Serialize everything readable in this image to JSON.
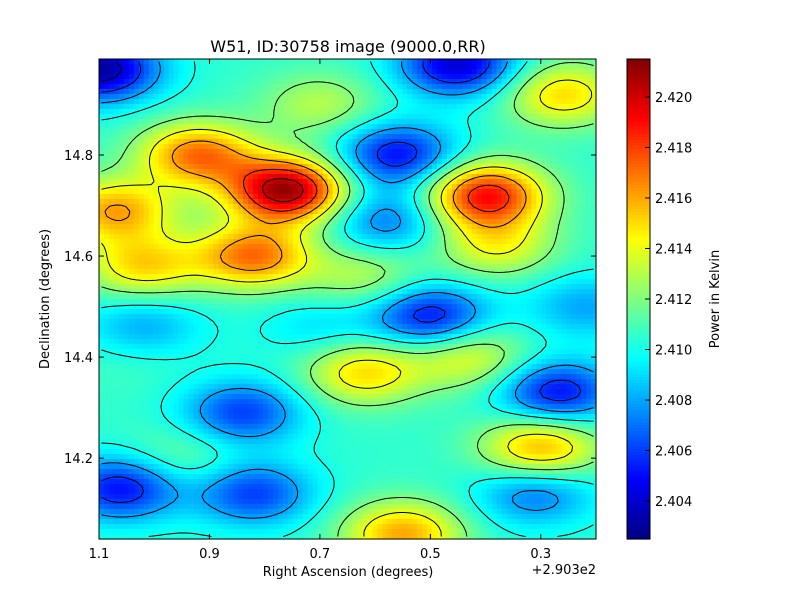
{
  "chart_data": {
    "type": "heatmap",
    "title": "W51, ID:30758 image (9000.0,RR)",
    "xlabel": "Right Ascension (degrees)",
    "ylabel": "Declination (degrees)",
    "x_offset_label": "+2.903e2",
    "xlim": [
      1.1,
      0.2
    ],
    "ylim": [
      14.04,
      14.99
    ],
    "x_ticks": [
      {
        "value": 1.1,
        "label": "1.1"
      },
      {
        "value": 0.9,
        "label": "0.9"
      },
      {
        "value": 0.7,
        "label": "0.7"
      },
      {
        "value": 0.5,
        "label": "0.5"
      },
      {
        "value": 0.3,
        "label": "0.3"
      }
    ],
    "y_ticks": [
      {
        "value": 14.2,
        "label": "14.2"
      },
      {
        "value": 14.4,
        "label": "14.4"
      },
      {
        "value": 14.6,
        "label": "14.6"
      },
      {
        "value": 14.8,
        "label": "14.8"
      }
    ],
    "colorbar": {
      "label": "Power in Kelvin",
      "colormap": "jet",
      "range": [
        2.4025,
        2.4215
      ],
      "ticks": [
        {
          "value": 2.404,
          "label": "2.404"
        },
        {
          "value": 2.406,
          "label": "2.406"
        },
        {
          "value": 2.408,
          "label": "2.408"
        },
        {
          "value": 2.41,
          "label": "2.410"
        },
        {
          "value": 2.412,
          "label": "2.412"
        },
        {
          "value": 2.414,
          "label": "2.414"
        },
        {
          "value": 2.416,
          "label": "2.416"
        },
        {
          "value": 2.418,
          "label": "2.418"
        },
        {
          "value": 2.42,
          "label": "2.420"
        }
      ]
    },
    "background_level": 2.4105,
    "contour_levels": [
      2.404,
      2.406,
      2.408,
      2.41,
      2.412,
      2.414,
      2.416,
      2.418,
      2.42
    ],
    "contour_color": "#000000",
    "features": [
      {
        "ra": 0.76,
        "dec": 14.73,
        "value": 2.421
      },
      {
        "ra": 0.4,
        "dec": 14.72,
        "value": 2.419
      },
      {
        "ra": 0.92,
        "dec": 14.8,
        "value": 2.417
      },
      {
        "ra": 1.07,
        "dec": 14.69,
        "value": 2.416
      },
      {
        "ra": 0.82,
        "dec": 14.6,
        "value": 2.417
      },
      {
        "ra": 1.02,
        "dec": 14.58,
        "value": 2.415
      },
      {
        "ra": 0.62,
        "dec": 14.56,
        "value": 2.413
      },
      {
        "ra": 0.62,
        "dec": 14.37,
        "value": 2.415
      },
      {
        "ra": 0.43,
        "dec": 14.4,
        "value": 2.414
      },
      {
        "ra": 0.3,
        "dec": 14.22,
        "value": 2.416
      },
      {
        "ra": 0.38,
        "dec": 14.62,
        "value": 2.414
      },
      {
        "ra": 0.26,
        "dec": 14.92,
        "value": 2.415
      },
      {
        "ra": 0.55,
        "dec": 14.05,
        "value": 2.416
      },
      {
        "ra": 0.7,
        "dec": 14.9,
        "value": 2.413
      },
      {
        "ra": 1.1,
        "dec": 14.97,
        "value": 2.403
      },
      {
        "ra": 0.56,
        "dec": 14.8,
        "value": 2.405
      },
      {
        "ra": 0.58,
        "dec": 14.67,
        "value": 2.407
      },
      {
        "ra": 0.5,
        "dec": 14.48,
        "value": 2.405
      },
      {
        "ra": 0.84,
        "dec": 14.29,
        "value": 2.406
      },
      {
        "ra": 0.27,
        "dec": 14.33,
        "value": 2.405
      },
      {
        "ra": 1.06,
        "dec": 14.14,
        "value": 2.405
      },
      {
        "ra": 0.82,
        "dec": 14.13,
        "value": 2.406
      },
      {
        "ra": 0.31,
        "dec": 14.13,
        "value": 2.407
      },
      {
        "ra": 0.45,
        "dec": 14.98,
        "value": 2.404
      },
      {
        "ra": 1.02,
        "dec": 14.46,
        "value": 2.408
      },
      {
        "ra": 0.22,
        "dec": 14.5,
        "value": 2.408
      },
      {
        "ra": 0.95,
        "dec": 14.2,
        "value": 2.412
      },
      {
        "ra": 1.05,
        "dec": 14.4,
        "value": 2.411
      },
      {
        "ra": 0.7,
        "dec": 14.46,
        "value": 2.409
      }
    ]
  }
}
